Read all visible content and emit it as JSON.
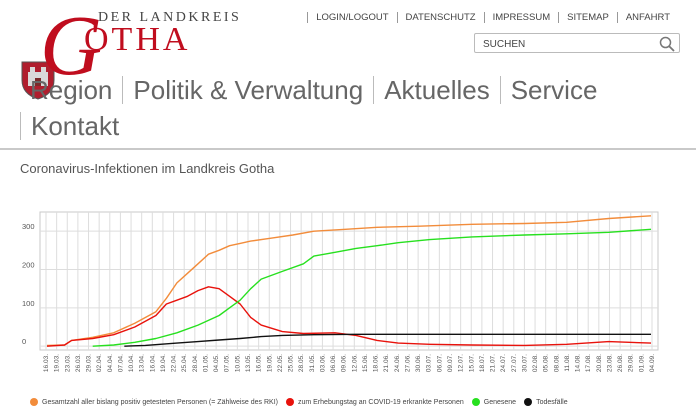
{
  "logo": {
    "line1": "DER LANDKREIS",
    "line2": "OTHA",
    "initial": "G"
  },
  "topnav": [
    "LOGIN/LOGOUT",
    "DATENSCHUTZ",
    "IMPRESSUM",
    "SITEMAP",
    "ANFAHRT"
  ],
  "search": {
    "placeholder": "SUCHEN"
  },
  "mainnav": {
    "row1": [
      "Region",
      "Politik & Verwaltung",
      "Aktuelles",
      "Service"
    ],
    "row2": [
      "Kontakt"
    ]
  },
  "page_title": "Coronavirus-Infektionen im Landkreis Gotha",
  "colors": {
    "accent": "#c00d1e",
    "orange": "#f28c3b",
    "red": "#e8120c",
    "green": "#27e01f",
    "black": "#111111"
  },
  "chart_data": {
    "type": "line",
    "title": "",
    "xlabel": "",
    "ylabel": "",
    "ylim": [
      -10,
      350
    ],
    "yticks": [
      0,
      100,
      200,
      300
    ],
    "x_range": [
      "2020-03-14",
      "2020-09-06"
    ],
    "grid": true,
    "legend_position": "bottom",
    "xticks": [
      "16.03.",
      "19.03.",
      "23.03.",
      "26.03.",
      "29.03.",
      "02.04.",
      "04.04.",
      "07.04.",
      "10.04.",
      "13.04.",
      "16.04.",
      "19.04.",
      "22.04.",
      "25.04.",
      "28.04.",
      "01.05.",
      "04.05.",
      "07.05.",
      "10.05.",
      "13.05.",
      "16.05.",
      "19.05.",
      "22.05.",
      "25.05.",
      "28.05.",
      "31.05.",
      "03.06.",
      "06.06.",
      "09.06.",
      "12.06.",
      "15.06.",
      "18.06.",
      "21.06.",
      "24.06.",
      "27.06.",
      "30.06.",
      "03.07.",
      "06.07.",
      "09.07.",
      "12.07.",
      "15.07.",
      "18.07.",
      "21.07.",
      "24.07.",
      "27.07.",
      "30.07.",
      "02.08.",
      "05.08.",
      "08.08.",
      "11.08.",
      "14.08.",
      "17.08.",
      "20.08.",
      "23.08.",
      "26.08.",
      "29.08.",
      "01.09.",
      "04.09."
    ],
    "series": [
      {
        "name": "Gesamtzahl aller bislang positiv getesteten Personen (= Zählweise des RKI)",
        "color": "#f28c3b",
        "points": [
          [
            "2020-03-16",
            2
          ],
          [
            "2020-03-21",
            3
          ],
          [
            "2020-03-23",
            15
          ],
          [
            "2020-03-29",
            23
          ],
          [
            "2020-04-04",
            35
          ],
          [
            "2020-04-10",
            60
          ],
          [
            "2020-04-16",
            90
          ],
          [
            "2020-04-19",
            125
          ],
          [
            "2020-04-22",
            165
          ],
          [
            "2020-04-25",
            190
          ],
          [
            "2020-04-28",
            215
          ],
          [
            "2020-05-01",
            240
          ],
          [
            "2020-05-04",
            250
          ],
          [
            "2020-05-07",
            262
          ],
          [
            "2020-05-10",
            268
          ],
          [
            "2020-05-13",
            274
          ],
          [
            "2020-05-19",
            282
          ],
          [
            "2020-05-25",
            290
          ],
          [
            "2020-05-31",
            300
          ],
          [
            "2020-06-09",
            305
          ],
          [
            "2020-06-18",
            310
          ],
          [
            "2020-06-30",
            313
          ],
          [
            "2020-07-15",
            318
          ],
          [
            "2020-07-30",
            320
          ],
          [
            "2020-08-11",
            323
          ],
          [
            "2020-08-23",
            333
          ],
          [
            "2020-09-04",
            340
          ]
        ]
      },
      {
        "name": "zum Erhebungstag an COVID-19 erkrankte Personen",
        "color": "#e8120c",
        "points": [
          [
            "2020-03-16",
            0
          ],
          [
            "2020-03-21",
            3
          ],
          [
            "2020-03-23",
            15
          ],
          [
            "2020-03-29",
            20
          ],
          [
            "2020-04-04",
            30
          ],
          [
            "2020-04-10",
            50
          ],
          [
            "2020-04-16",
            80
          ],
          [
            "2020-04-19",
            110
          ],
          [
            "2020-04-22",
            120
          ],
          [
            "2020-04-25",
            130
          ],
          [
            "2020-04-28",
            145
          ],
          [
            "2020-05-01",
            155
          ],
          [
            "2020-05-04",
            150
          ],
          [
            "2020-05-07",
            130
          ],
          [
            "2020-05-10",
            110
          ],
          [
            "2020-05-13",
            75
          ],
          [
            "2020-05-16",
            55
          ],
          [
            "2020-05-22",
            38
          ],
          [
            "2020-05-28",
            33
          ],
          [
            "2020-06-06",
            35
          ],
          [
            "2020-06-12",
            28
          ],
          [
            "2020-06-18",
            15
          ],
          [
            "2020-06-24",
            8
          ],
          [
            "2020-07-03",
            5
          ],
          [
            "2020-07-15",
            3
          ],
          [
            "2020-07-30",
            2
          ],
          [
            "2020-08-11",
            5
          ],
          [
            "2020-08-23",
            12
          ],
          [
            "2020-09-04",
            8
          ]
        ]
      },
      {
        "name": "Genesene",
        "color": "#27e01f",
        "points": [
          [
            "2020-03-29",
            0
          ],
          [
            "2020-04-04",
            3
          ],
          [
            "2020-04-10",
            10
          ],
          [
            "2020-04-16",
            20
          ],
          [
            "2020-04-22",
            35
          ],
          [
            "2020-04-28",
            55
          ],
          [
            "2020-05-04",
            80
          ],
          [
            "2020-05-07",
            100
          ],
          [
            "2020-05-10",
            120
          ],
          [
            "2020-05-13",
            150
          ],
          [
            "2020-05-16",
            175
          ],
          [
            "2020-05-22",
            195
          ],
          [
            "2020-05-28",
            215
          ],
          [
            "2020-05-31",
            235
          ],
          [
            "2020-06-06",
            245
          ],
          [
            "2020-06-12",
            255
          ],
          [
            "2020-06-18",
            262
          ],
          [
            "2020-06-24",
            270
          ],
          [
            "2020-07-03",
            278
          ],
          [
            "2020-07-15",
            285
          ],
          [
            "2020-07-30",
            290
          ],
          [
            "2020-08-11",
            293
          ],
          [
            "2020-08-23",
            297
          ],
          [
            "2020-09-04",
            305
          ]
        ]
      },
      {
        "name": "Todesfälle",
        "color": "#111111",
        "points": [
          [
            "2020-04-07",
            0
          ],
          [
            "2020-04-13",
            2
          ],
          [
            "2020-04-22",
            8
          ],
          [
            "2020-04-28",
            12
          ],
          [
            "2020-05-04",
            16
          ],
          [
            "2020-05-10",
            20
          ],
          [
            "2020-05-16",
            25
          ],
          [
            "2020-05-22",
            28
          ],
          [
            "2020-05-31",
            30
          ],
          [
            "2020-06-12",
            31
          ],
          [
            "2020-09-04",
            31
          ]
        ]
      }
    ]
  }
}
